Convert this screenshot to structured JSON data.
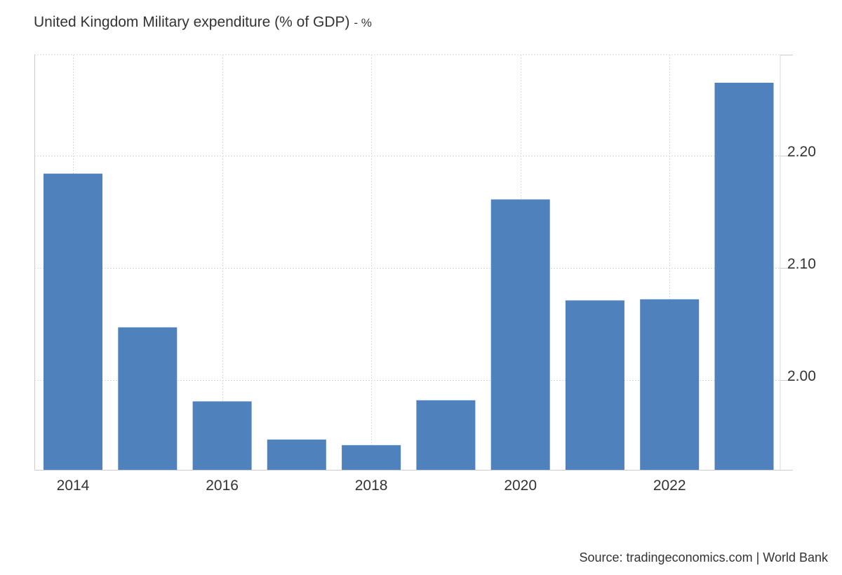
{
  "chart_data": {
    "type": "bar",
    "title": "United Kingdom Military expenditure (% of GDP)",
    "unit": "- %",
    "categories": [
      "2014",
      "2015",
      "2016",
      "2017",
      "2018",
      "2019",
      "2020",
      "2021",
      "2022",
      "2023"
    ],
    "x_tick_labels": [
      "2014",
      "2016",
      "2018",
      "2020",
      "2022"
    ],
    "values": [
      2.184,
      2.047,
      1.981,
      1.947,
      1.942,
      1.982,
      2.161,
      2.071,
      2.072,
      2.265
    ],
    "ylim": [
      1.92,
      2.29
    ],
    "y_tick_labels": [
      "2.00",
      "2.10",
      "2.20"
    ],
    "y_tick_values": [
      2.0,
      2.1,
      2.2
    ],
    "y_axis_side": "right",
    "grid": true,
    "bar_color": "#4f81bd",
    "grid_color": "#d9d9d9"
  },
  "source": "Source: tradingeconomics.com | World Bank"
}
